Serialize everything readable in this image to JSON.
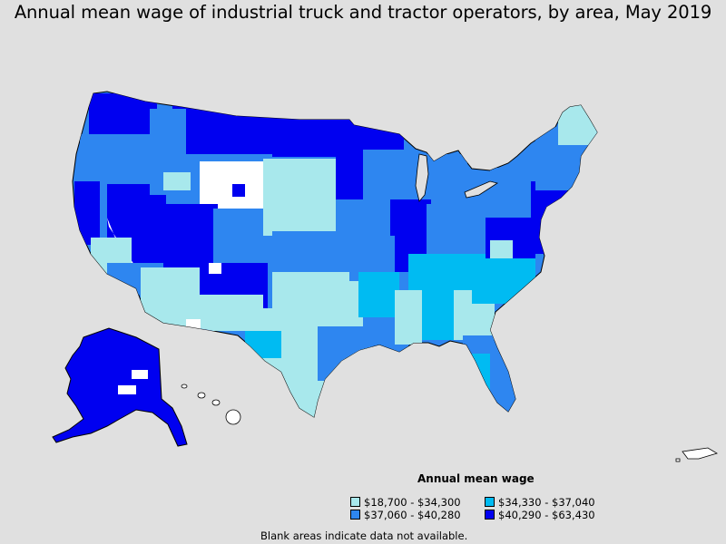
{
  "title": "Annual mean wage of industrial truck and tractor operators, by area, May 2019",
  "legend": {
    "title": "Annual mean wage",
    "items": [
      {
        "label": "$18,700 - $34,300",
        "color": "#a8e8ec"
      },
      {
        "label": "$34,330 - $37,040",
        "color": "#00bbf2"
      },
      {
        "label": "$37,060 - $40,280",
        "color": "#2e86f0"
      },
      {
        "label": "$40,290 - $63,430",
        "color": "#0000f0"
      }
    ]
  },
  "footnote": "Blank areas indicate data not available.",
  "colors": {
    "background": "#e0e0e0",
    "no_data": "#ffffff",
    "border": "#000000"
  }
}
